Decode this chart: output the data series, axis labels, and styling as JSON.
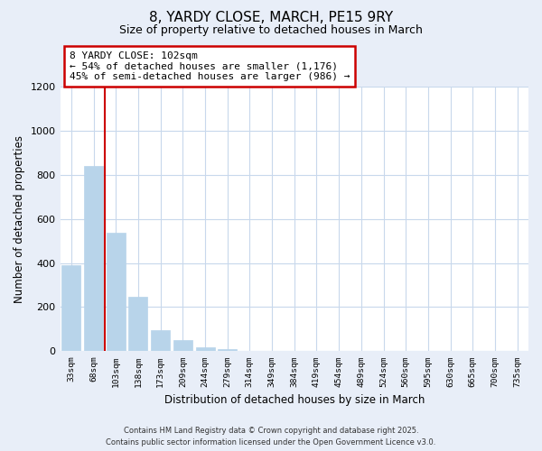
{
  "title": "8, YARDY CLOSE, MARCH, PE15 9RY",
  "subtitle": "Size of property relative to detached houses in March",
  "xlabel": "Distribution of detached houses by size in March",
  "ylabel": "Number of detached properties",
  "bar_labels": [
    "33sqm",
    "68sqm",
    "103sqm",
    "138sqm",
    "173sqm",
    "209sqm",
    "244sqm",
    "279sqm",
    "314sqm",
    "349sqm",
    "384sqm",
    "419sqm",
    "454sqm",
    "489sqm",
    "524sqm",
    "560sqm",
    "595sqm",
    "630sqm",
    "665sqm",
    "700sqm",
    "735sqm"
  ],
  "bar_values": [
    390,
    840,
    535,
    248,
    97,
    50,
    18,
    8,
    3,
    0,
    0,
    0,
    0,
    0,
    0,
    0,
    0,
    0,
    0,
    0,
    0
  ],
  "bar_color": "#b8d4ea",
  "vline_x_index": 1.5,
  "vline_color": "#cc0000",
  "annotation_title": "8 YARDY CLOSE: 102sqm",
  "annotation_line1": "← 54% of detached houses are smaller (1,176)",
  "annotation_line2": "45% of semi-detached houses are larger (986) →",
  "ylim": [
    0,
    1200
  ],
  "yticks": [
    0,
    200,
    400,
    600,
    800,
    1000,
    1200
  ],
  "footer_line1": "Contains HM Land Registry data © Crown copyright and database right 2025.",
  "footer_line2": "Contains public sector information licensed under the Open Government Licence v3.0.",
  "background_color": "#e8eef8",
  "plot_bg_color": "#ffffff",
  "grid_color": "#c8d8ec"
}
